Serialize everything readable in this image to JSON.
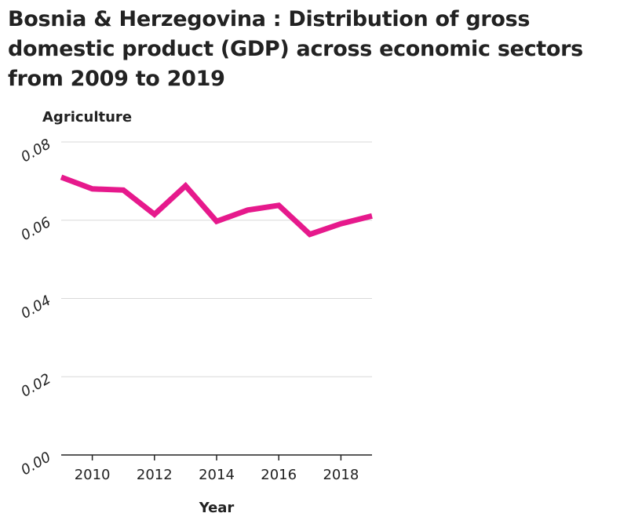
{
  "chart_data": {
    "type": "line",
    "title": "Bosnia & Herzegovina : Distribution of gross domestic product (GDP) across economic sectors from 2009 to 2019",
    "ylabel": "Agriculture",
    "xlabel": "Year",
    "x": [
      2009,
      2010,
      2011,
      2012,
      2013,
      2014,
      2015,
      2016,
      2017,
      2018,
      2019
    ],
    "series": [
      {
        "values": [
          0.071,
          0.068,
          0.0677,
          0.0615,
          0.0688,
          0.0597,
          0.0626,
          0.0638,
          0.0564,
          0.0591,
          0.0611
        ]
      }
    ],
    "xlim": [
      2009,
      2019
    ],
    "ylim": [
      0,
      0.08
    ],
    "xticks": [
      "2010",
      "2012",
      "2014",
      "2016",
      "2018"
    ],
    "yticks": [
      "0.00",
      "0.02",
      "0.04",
      "0.06",
      "0.08"
    ],
    "grid": "horizontal",
    "legend": "none",
    "colors": {
      "line": "#e6198c",
      "grid": "#d9d9d9",
      "axis": "#222222"
    }
  }
}
